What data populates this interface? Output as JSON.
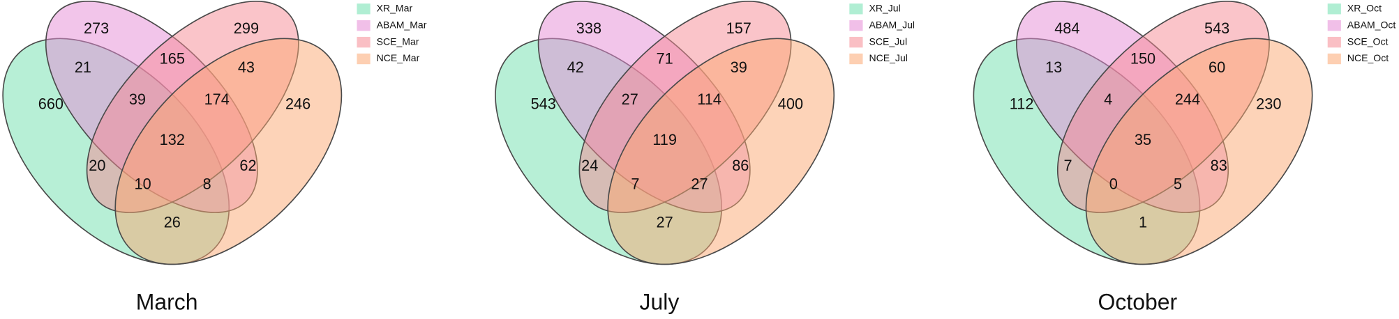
{
  "chart_data": [
    {
      "type": "venn",
      "title": "March",
      "sets": [
        {
          "name": "XR_Mar",
          "color": "#6fe0ae"
        },
        {
          "name": "ABAM_Mar",
          "color": "#e58bd6"
        },
        {
          "name": "SCE_Mar",
          "color": "#f58a93"
        },
        {
          "name": "NCE_Mar",
          "color": "#fca872"
        }
      ],
      "values": [
        660,
        273,
        299,
        246,
        21,
        165,
        43,
        39,
        174,
        132,
        20,
        62,
        10,
        8,
        26
      ]
    },
    {
      "type": "venn",
      "title": "July",
      "sets": [
        {
          "name": "XR_Jul",
          "color": "#6fe0ae"
        },
        {
          "name": "ABAM_Jul",
          "color": "#e58bd6"
        },
        {
          "name": "SCE_Jul",
          "color": "#f58a93"
        },
        {
          "name": "NCE_Jul",
          "color": "#fca872"
        }
      ],
      "values": [
        543,
        338,
        157,
        400,
        42,
        71,
        39,
        27,
        114,
        119,
        24,
        86,
        7,
        27,
        27
      ]
    },
    {
      "type": "venn",
      "title": "October",
      "sets": [
        {
          "name": "XR_Oct",
          "color": "#6fe0ae"
        },
        {
          "name": "ABAM_Oct",
          "color": "#e58bd6"
        },
        {
          "name": "SCE_Oct",
          "color": "#f58a93"
        },
        {
          "name": "NCE_Oct",
          "color": "#fca872"
        }
      ],
      "values": [
        112,
        484,
        543,
        230,
        13,
        150,
        60,
        4,
        244,
        35,
        7,
        83,
        0,
        5,
        1
      ]
    }
  ]
}
